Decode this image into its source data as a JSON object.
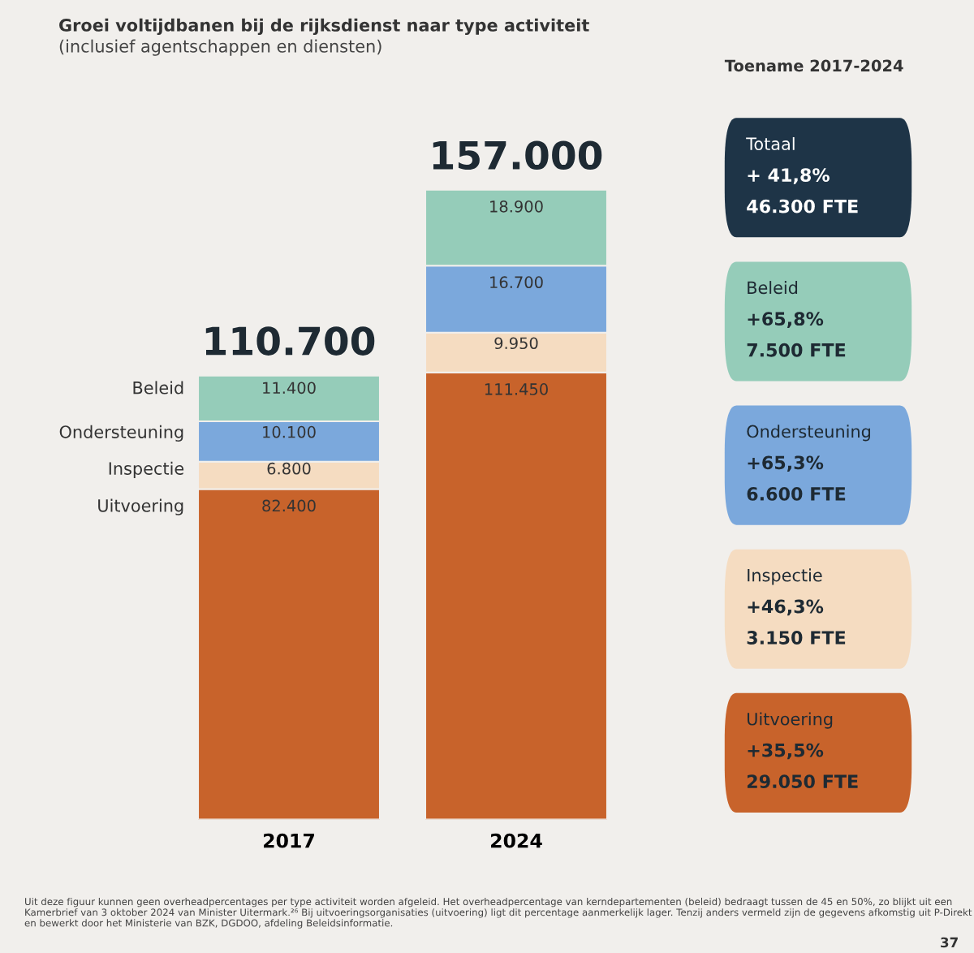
{
  "chart_data": [
    {
      "type": "bar",
      "stacked": true,
      "title": "Groei voltijdbanen bij de rijksdienst naar type activiteit",
      "subtitle": "(inclusief agentschappen en diensten)",
      "categories": [
        "2017",
        "2024"
      ],
      "series": [
        {
          "name": "Uitvoering",
          "color": "#c8632b",
          "values": [
            82400,
            111450
          ],
          "value_labels": [
            "82.400",
            "111.450"
          ]
        },
        {
          "name": "Inspectie",
          "color": "#f5dcc1",
          "values": [
            6800,
            9950
          ],
          "value_labels": [
            "6.800",
            "9.950"
          ]
        },
        {
          "name": "Ondersteuning",
          "color": "#7ba8dc",
          "values": [
            10100,
            16700
          ],
          "value_labels": [
            "10.100",
            "16.700"
          ]
        },
        {
          "name": "Beleid",
          "color": "#95ccb9",
          "values": [
            11400,
            18900
          ],
          "value_labels": [
            "11.400",
            "18.900"
          ]
        }
      ],
      "totals": [
        "110.700",
        "157.000"
      ],
      "legend": false,
      "annotations": [
        "Uit deze figuur kunnen geen overheadpercentages per type activiteit worden afgeleid. Het overheadpercentage van kerndepartementen (beleid) bedraagt tussen de 45 en 50%, zo blijkt uit een Kamerbrief van 3 oktober 2024 van Minister Uitermark.²⁶ Bij uitvoeringsorganisaties (uitvoering) ligt dit percentage aanmerkelijk lager. Tenzij anders vermeld zijn de gegevens afkomstig uit P-Direkt en bewerkt door het Ministerie van BZK, DGDOO, afdeling Beleidsinformatie.",
        "37"
      ]
    },
    {
      "type": "other",
      "title": "Toename 2017-2024",
      "categories": [
        "Totaal",
        "Beleid",
        "Ondersteuning",
        "Inspectie",
        "Uitvoering"
      ],
      "colors": [
        "#1e3447",
        "#95ccb9",
        "#7ba8dc",
        "#f5dcc1",
        "#c8632b"
      ],
      "annotations": [
        "+ 41,8%",
        "46.300 FTE",
        "+65,8%",
        "7.500 FTE",
        "+65,3%",
        "6.600 FTE",
        "+46,3%",
        "3.150 FTE",
        "+35,5%",
        "29.050 FTE"
      ]
    }
  ]
}
